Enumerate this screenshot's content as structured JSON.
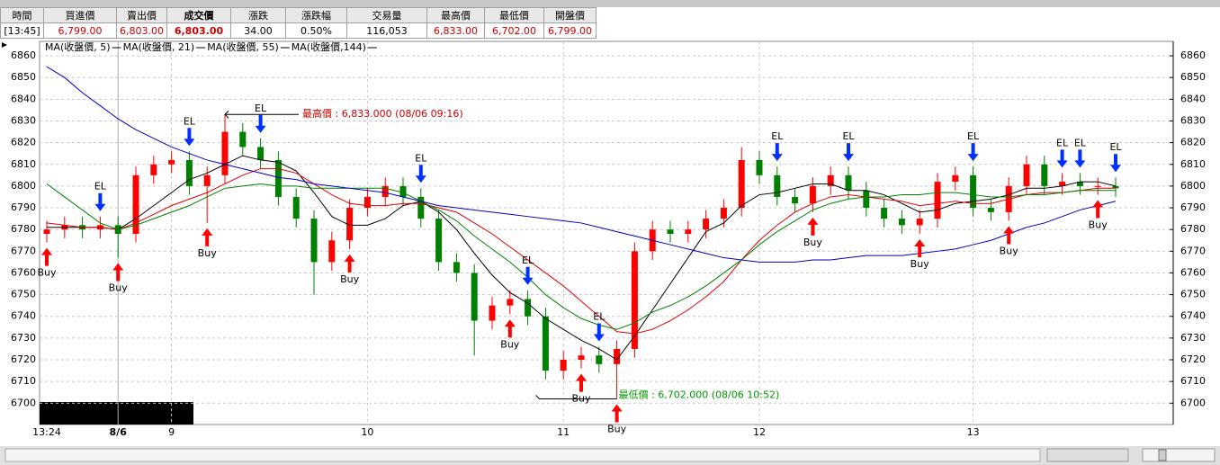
{
  "header": {
    "columns": [
      "時間",
      "買進價",
      "賣出價",
      "成交價",
      "漲跌",
      "漲跌幅",
      "交易量",
      "最高價",
      "最低價",
      "開盤價"
    ],
    "values": [
      "[13:45]",
      "6,799.00",
      "6,803.00",
      "6,803.00",
      "34.00",
      "0.50%",
      "116,053",
      "6,833.00",
      "6,702.00",
      "6,799.00"
    ]
  },
  "chart_data": {
    "type": "candlestick",
    "categories": [
      "13:24",
      null,
      null,
      null,
      "8/6",
      null,
      null,
      "9",
      null,
      null,
      null,
      null,
      null,
      null,
      null,
      null,
      null,
      null,
      "10",
      null,
      null,
      null,
      null,
      null,
      null,
      null,
      null,
      null,
      null,
      "11",
      null,
      null,
      null,
      null,
      null,
      null,
      null,
      null,
      null,
      null,
      "12",
      null,
      null,
      null,
      null,
      null,
      null,
      null,
      null,
      null,
      null,
      null,
      "13",
      null,
      null,
      null,
      null,
      null,
      null,
      null,
      null
    ],
    "open": [
      6778,
      6780,
      6782,
      6780,
      6782,
      6778,
      6805,
      6810,
      6812,
      6800,
      6805,
      6825,
      6818,
      6812,
      6795,
      6785,
      6765,
      6775,
      6790,
      6795,
      6800,
      6795,
      6785,
      6765,
      6760,
      6738,
      6745,
      6748,
      6740,
      6715,
      6720,
      6722,
      6718,
      6725,
      6770,
      6780,
      6778,
      6780,
      6785,
      6790,
      6812,
      6805,
      6795,
      6792,
      6800,
      6805,
      6798,
      6790,
      6785,
      6782,
      6785,
      6802,
      6805,
      6790,
      6788,
      6800,
      6810,
      6800,
      6802,
      6800,
      6800
    ],
    "high": [
      6784,
      6786,
      6786,
      6786,
      6786,
      6809,
      6814,
      6816,
      6816,
      6809,
      6833,
      6829,
      6822,
      6816,
      6799,
      6789,
      6779,
      6794,
      6799,
      6804,
      6804,
      6799,
      6789,
      6769,
      6764,
      6749,
      6752,
      6752,
      6744,
      6724,
      6726,
      6726,
      6729,
      6774,
      6784,
      6784,
      6784,
      6789,
      6794,
      6818,
      6816,
      6809,
      6799,
      6804,
      6809,
      6809,
      6802,
      6794,
      6789,
      6789,
      6806,
      6809,
      6809,
      6794,
      6804,
      6814,
      6814,
      6806,
      6806,
      6804,
      6804
    ],
    "low": [
      6774,
      6776,
      6776,
      6776,
      6767,
      6774,
      6801,
      6806,
      6796,
      6783,
      6801,
      6814,
      6808,
      6791,
      6781,
      6750,
      6761,
      6771,
      6786,
      6791,
      6791,
      6781,
      6761,
      6756,
      6722,
      6734,
      6741,
      6736,
      6711,
      6711,
      6716,
      6714,
      6702,
      6721,
      6766,
      6774,
      6774,
      6776,
      6781,
      6786,
      6801,
      6791,
      6788,
      6788,
      6796,
      6794,
      6786,
      6781,
      6778,
      6778,
      6781,
      6798,
      6786,
      6784,
      6784,
      6796,
      6796,
      6796,
      6796,
      6796,
      6795
    ],
    "close": [
      6780,
      6782,
      6780,
      6782,
      6778,
      6805,
      6810,
      6812,
      6800,
      6805,
      6825,
      6818,
      6812,
      6795,
      6785,
      6765,
      6775,
      6790,
      6795,
      6800,
      6795,
      6785,
      6765,
      6760,
      6738,
      6745,
      6748,
      6740,
      6715,
      6720,
      6722,
      6718,
      6725,
      6770,
      6780,
      6778,
      6780,
      6785,
      6790,
      6812,
      6805,
      6795,
      6792,
      6800,
      6805,
      6798,
      6790,
      6785,
      6782,
      6785,
      6802,
      6805,
      6790,
      6788,
      6800,
      6810,
      6800,
      6802,
      6800,
      6800,
      6799
    ],
    "up_color": "#ff0000",
    "down_color": "#008000",
    "series": [
      {
        "name": "MA(收盤價, 5)",
        "color": "#000000",
        "values": [
          6781,
          6781,
          6781,
          6781,
          6780,
          6785,
          6791,
          6797,
          6803,
          6806,
          6810,
          6814,
          6812,
          6811,
          6807,
          6797,
          6786,
          6782,
          6782,
          6785,
          6791,
          6793,
          6788,
          6780,
          6769,
          6759,
          6751,
          6746,
          6739,
          6734,
          6729,
          6725,
          6720,
          6731,
          6743,
          6755,
          6767,
          6779,
          6783,
          6791,
          6796,
          6797,
          6799,
          6801,
          6801,
          6798,
          6798,
          6796,
          6792,
          6788,
          6789,
          6792,
          6793,
          6794,
          6796,
          6799,
          6799,
          6800,
          6802,
          6802,
          6800
        ]
      },
      {
        "name": "MA(收盤價, 21)",
        "color": "#e00000",
        "values": [
          6783,
          6782,
          6781,
          6781,
          6780,
          6783,
          6787,
          6791,
          6794,
          6797,
          6801,
          6805,
          6808,
          6808,
          6806,
          6801,
          6796,
          6792,
          6791,
          6791,
          6792,
          6792,
          6790,
          6788,
          6783,
          6778,
          6772,
          6766,
          6760,
          6754,
          6747,
          6740,
          6733,
          6732,
          6734,
          6738,
          6743,
          6749,
          6756,
          6766,
          6775,
          6782,
          6788,
          6792,
          6795,
          6796,
          6795,
          6794,
          6793,
          6791,
          6792,
          6793,
          6792,
          6792,
          6794,
          6796,
          6797,
          6797,
          6798,
          6799,
          6799
        ]
      },
      {
        "name": "MA(收盤價, 55)",
        "color": "#008000",
        "values": [
          6801,
          6795,
          6789,
          6783,
          6780,
          6782,
          6785,
          6788,
          6791,
          6795,
          6799,
          6800,
          6801,
          6800,
          6800,
          6799,
          6799,
          6799,
          6799,
          6799,
          6797,
          6793,
          6789,
          6784,
          6777,
          6771,
          6765,
          6758,
          6750,
          6744,
          6739,
          6736,
          6734,
          6737,
          6742,
          6745,
          6749,
          6754,
          6760,
          6766,
          6773,
          6779,
          6784,
          6789,
          6792,
          6794,
          6795,
          6795,
          6796,
          6796,
          6797,
          6797,
          6796,
          6795,
          6795,
          6796,
          6796,
          6797,
          6798,
          6798,
          6798
        ]
      },
      {
        "name": "MA(收盤價,144)",
        "color": "#0000c0",
        "values": [
          6855,
          6850,
          6843,
          6837,
          6831,
          6826,
          6822,
          6818,
          6815,
          6812,
          6810,
          6808,
          6806,
          6804,
          6803,
          6801,
          6800,
          6799,
          6798,
          6797,
          6795,
          6793,
          6791,
          6790,
          6789,
          6788,
          6787,
          6786,
          6785,
          6784,
          6783,
          6781,
          6779,
          6777,
          6775,
          6773,
          6771,
          6769,
          6767,
          6766,
          6765,
          6765,
          6765,
          6766,
          6766,
          6767,
          6768,
          6768,
          6768,
          6769,
          6770,
          6771,
          6773,
          6775,
          6778,
          6781,
          6783,
          6786,
          6789,
          6791,
          6793
        ]
      }
    ],
    "signals": [
      "Buy",
      null,
      null,
      "EL",
      "Buy",
      null,
      null,
      null,
      "EL",
      "Buy",
      null,
      null,
      "EL",
      null,
      null,
      null,
      null,
      "Buy",
      null,
      null,
      null,
      "EL",
      null,
      null,
      null,
      null,
      "Buy",
      "EL",
      null,
      null,
      "Buy",
      "EL",
      "Buy",
      null,
      null,
      null,
      null,
      null,
      null,
      null,
      null,
      "EL",
      null,
      "Buy",
      null,
      "EL",
      null,
      null,
      null,
      "Buy",
      null,
      null,
      "EL",
      null,
      "Buy",
      null,
      null,
      "EL",
      "EL",
      "Buy",
      "EL"
    ],
    "annotations": [
      {
        "text": "最高價 : 6,833.000 (08/06 09:16)",
        "color": "#cc0000"
      },
      {
        "text": "最低價 : 6,702.000 (08/06 10:52)",
        "color": "#009900"
      }
    ],
    "ylim": [
      6691,
      6865
    ],
    "yticks": [
      6700,
      6710,
      6720,
      6730,
      6740,
      6750,
      6760,
      6770,
      6780,
      6790,
      6800,
      6810,
      6820,
      6830,
      6840,
      6850,
      6860
    ],
    "grid": true
  }
}
